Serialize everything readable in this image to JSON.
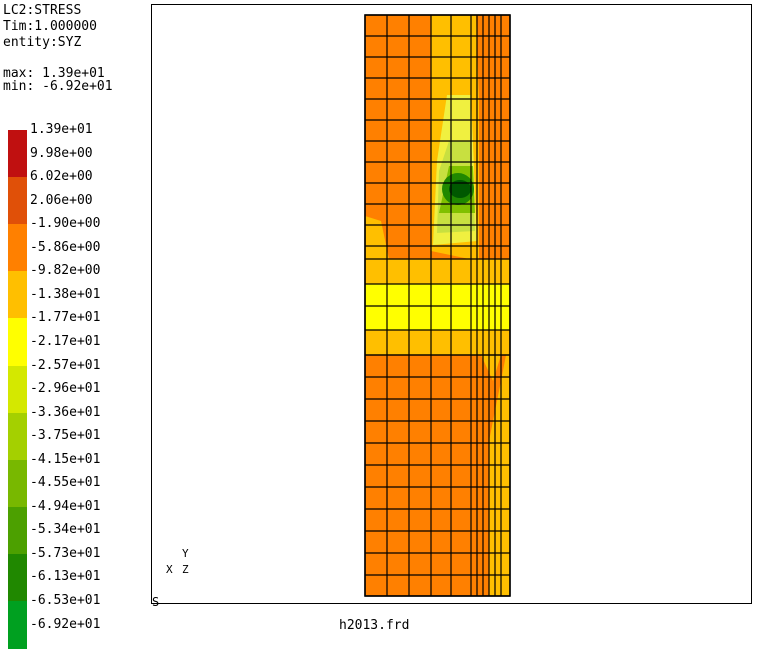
{
  "header": {
    "lines": [
      "LC2:STRESS",
      "Tim:1.000000",
      "entity:SYZ"
    ],
    "max": "max: 1.39e+01",
    "min": "min: -6.92e+01"
  },
  "legend": {
    "labels": [
      "1.39e+01",
      "9.98e+00",
      "6.02e+00",
      "2.06e+00",
      "-1.90e+00",
      "-5.86e+00",
      "-9.82e+00",
      "-1.38e+01",
      "-1.77e+01",
      "-2.17e+01",
      "-2.57e+01",
      "-2.96e+01",
      "-3.36e+01",
      "-3.75e+01",
      "-4.15e+01",
      "-4.55e+01",
      "-4.94e+01",
      "-5.34e+01",
      "-5.73e+01",
      "-6.13e+01",
      "-6.53e+01",
      "-6.92e+01"
    ],
    "colors": [
      "#c01010",
      "#e05008",
      "#ff8000",
      "#ffbf00",
      "#ffff00",
      "#d4e800",
      "#a4d000",
      "#78b800",
      "#4ca000",
      "#208800",
      "#00a020"
    ]
  },
  "model_colors": {
    "dominant": "#ff8000",
    "yellow_band": "#ffff00",
    "amber": "#ffbf00",
    "light_yellow": "#f0f040",
    "green_light": "#c8e040",
    "green_mid": "#80c000",
    "green_dark": "#208800",
    "green_core": "#005800"
  },
  "axes": {
    "x": "X",
    "y": "Y",
    "z": "Z"
  },
  "viewport_mark": "S",
  "filename": "h2013.frd"
}
